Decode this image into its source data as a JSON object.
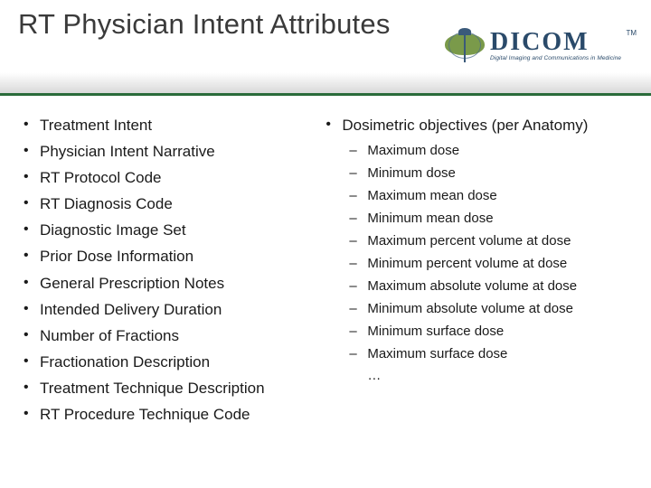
{
  "title": "RT Physician Intent Attributes",
  "logo": {
    "main": "DICOM",
    "sub": "Digital Imaging and Communications in Medicine",
    "tm": "TM"
  },
  "colors": {
    "accent_border": "#2a6b3a",
    "title_color": "#3a3a3a",
    "logo_color": "#2a4a6a",
    "text_color": "#1a1a1a",
    "background": "#ffffff"
  },
  "left_bullets": [
    "Treatment Intent",
    "Physician Intent Narrative",
    "RT Protocol Code",
    "RT Diagnosis Code",
    "Diagnostic Image Set",
    "Prior Dose Information",
    "General Prescription Notes",
    "Intended Delivery Duration",
    "Number of Fractions",
    "Fractionation Description",
    "Treatment Technique Description",
    "RT Procedure Technique Code"
  ],
  "right_heading": "Dosimetric objectives (per Anatomy)",
  "right_sub": [
    "Maximum dose",
    "Minimum dose",
    "Maximum mean dose",
    "Minimum mean dose",
    "Maximum percent volume at dose",
    "Minimum percent volume at dose",
    "Maximum absolute volume at dose",
    "Minimum absolute volume at dose",
    "Minimum surface dose",
    "Maximum surface dose"
  ],
  "right_ellipsis": "…"
}
